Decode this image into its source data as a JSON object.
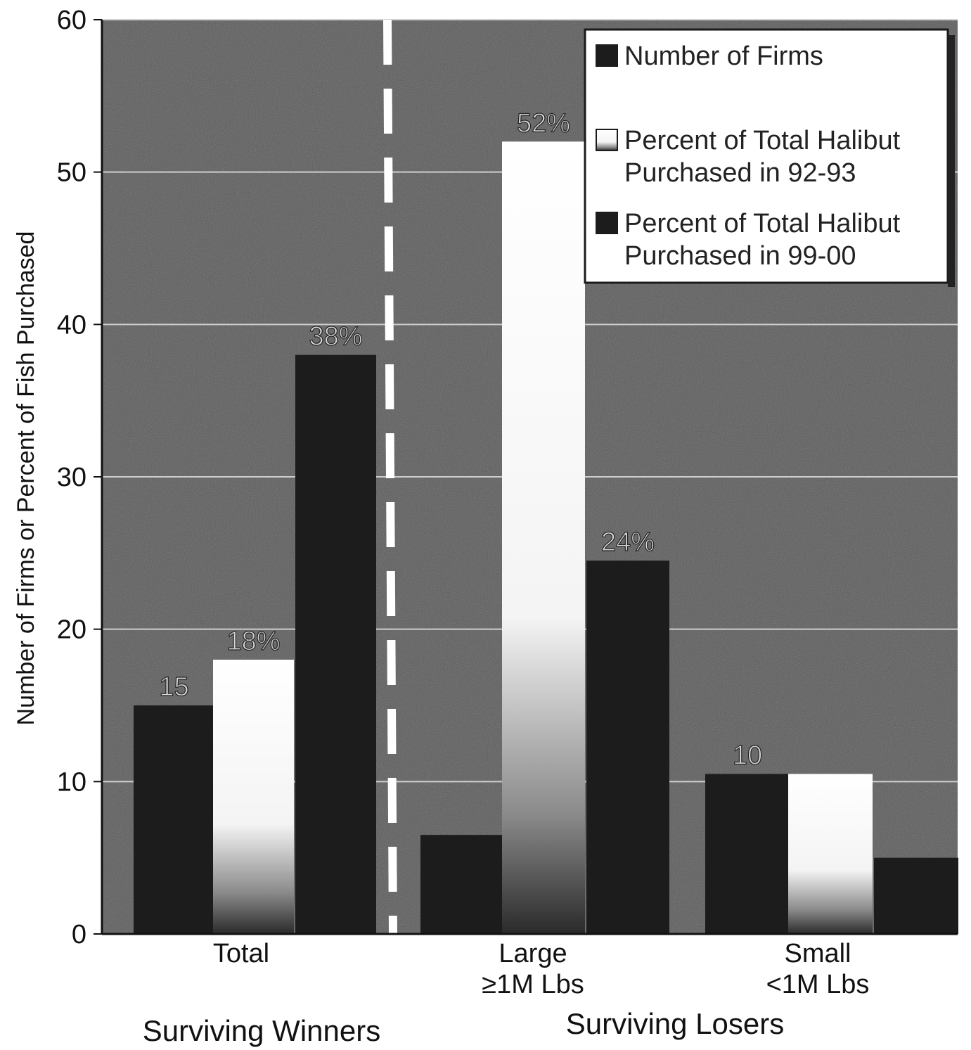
{
  "chart_data": {
    "type": "bar",
    "ylabel": "Number of Firms or Percent of Fish Purchased",
    "ylim": [
      0,
      60
    ],
    "yticks": [
      "0",
      "10",
      "20",
      "30",
      "40",
      "50",
      "60"
    ],
    "grid": true,
    "legend_position": "top-right",
    "categories": [
      {
        "label": "Total",
        "sublabel": ""
      },
      {
        "label": "Large",
        "sublabel": "≥1M Lbs"
      },
      {
        "label": "Small",
        "sublabel": "<1M Lbs"
      }
    ],
    "groups": [
      "Surviving Winners",
      "Surviving Losers"
    ],
    "series": [
      {
        "name": "Number of Firms",
        "values": [
          15,
          6.5,
          10.5
        ],
        "labels": [
          "15",
          "",
          "10"
        ],
        "color": "#1c1c1c"
      },
      {
        "name": "Percent of Total Halibut Purchased in 92-93",
        "values": [
          18,
          52,
          10.5
        ],
        "labels": [
          "18%",
          "52%",
          ""
        ],
        "color": "#ffffff"
      },
      {
        "name": "Percent of Total Halibut Purchased in 99-00",
        "values": [
          38,
          24.5,
          5
        ],
        "labels": [
          "38%",
          "24%",
          ""
        ],
        "color": "#1c1c1c"
      }
    ],
    "legend": [
      {
        "line1": "Number of Firms",
        "line2": ""
      },
      {
        "line1": "Percent of Total Halibut",
        "line2": "Purchased in 92-93"
      },
      {
        "line1": "Percent of Total Halibut",
        "line2": "Purchased in 99-00"
      }
    ]
  }
}
